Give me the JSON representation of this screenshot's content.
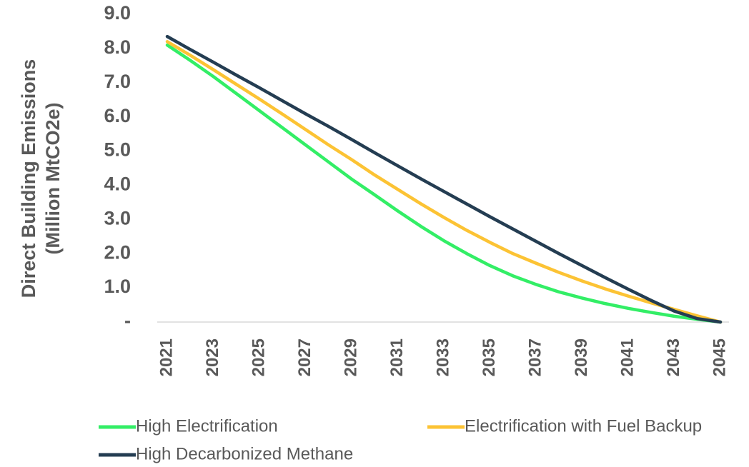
{
  "chart_data": {
    "type": "line",
    "title": "",
    "xlabel": "",
    "ylabel_lines": [
      "Direct Building Emissions",
      "(Million  MtCO2e)"
    ],
    "ylim": [
      0,
      9
    ],
    "y_ticks": [
      {
        "value": 0,
        "label": "-"
      },
      {
        "value": 1,
        "label": "1.0"
      },
      {
        "value": 2,
        "label": "2.0"
      },
      {
        "value": 3,
        "label": "3.0"
      },
      {
        "value": 4,
        "label": "4.0"
      },
      {
        "value": 5,
        "label": "5.0"
      },
      {
        "value": 6,
        "label": "6.0"
      },
      {
        "value": 7,
        "label": "7.0"
      },
      {
        "value": 8,
        "label": "8.0"
      },
      {
        "value": 9,
        "label": "9.0"
      }
    ],
    "x_tick_labels": [
      "2021",
      "2023",
      "2025",
      "2027",
      "2029",
      "2031",
      "2033",
      "2035",
      "2037",
      "2039",
      "2041",
      "2043",
      "2045"
    ],
    "x": [
      2021,
      2022,
      2023,
      2024,
      2025,
      2026,
      2027,
      2028,
      2029,
      2030,
      2031,
      2032,
      2033,
      2034,
      2035,
      2036,
      2037,
      2038,
      2039,
      2040,
      2041,
      2042,
      2043,
      2044,
      2045
    ],
    "grid": false,
    "legend_position": "bottom",
    "series": [
      {
        "name": "High Electrification",
        "color": "#33ee66",
        "values": [
          8.1,
          7.65,
          7.18,
          6.68,
          6.18,
          5.68,
          5.18,
          4.68,
          4.18,
          3.72,
          3.25,
          2.8,
          2.38,
          2.0,
          1.65,
          1.35,
          1.1,
          0.88,
          0.7,
          0.54,
          0.4,
          0.28,
          0.17,
          0.08,
          0.0
        ]
      },
      {
        "name": "Electrification with Fuel Backup",
        "color": "#fcc334",
        "values": [
          8.2,
          7.8,
          7.38,
          6.95,
          6.52,
          6.08,
          5.63,
          5.18,
          4.75,
          4.3,
          3.88,
          3.46,
          3.06,
          2.68,
          2.33,
          2.0,
          1.72,
          1.45,
          1.2,
          0.97,
          0.76,
          0.56,
          0.37,
          0.18,
          0.0
        ]
      },
      {
        "name": "High Decarbonized Methane",
        "color": "#243d52",
        "values": [
          8.35,
          7.97,
          7.6,
          7.22,
          6.85,
          6.47,
          6.09,
          5.72,
          5.34,
          4.95,
          4.57,
          4.19,
          3.82,
          3.45,
          3.08,
          2.72,
          2.36,
          2.0,
          1.65,
          1.3,
          0.96,
          0.63,
          0.32,
          0.1,
          0.0
        ]
      }
    ]
  }
}
